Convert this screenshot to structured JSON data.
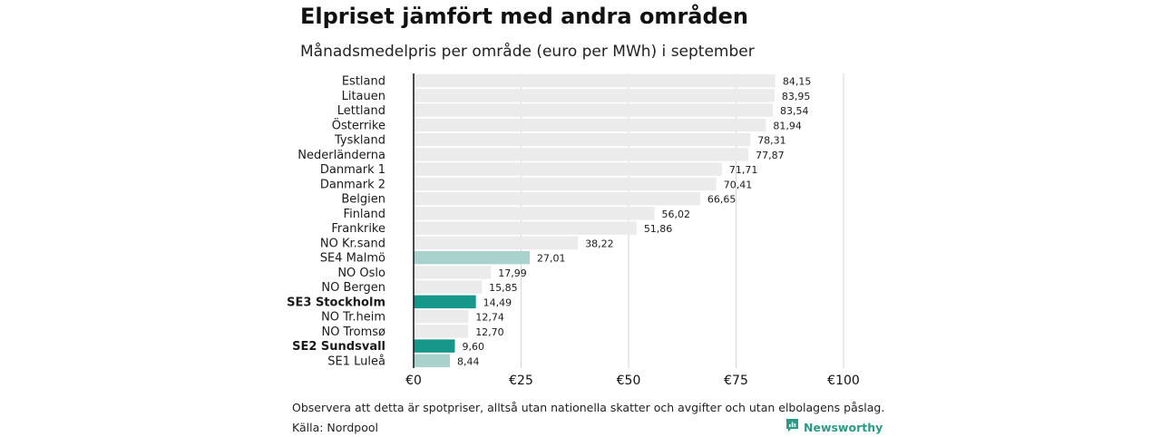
{
  "title": "Elpriset jämfört med andra områden",
  "subtitle": "Månadsmedelpris per område (euro per MWh) i september",
  "note": "Observera att detta är spotpriser, alltså utan nationella skatter och avgifter och utan elbolagens påslag.",
  "source": "Källa: Nordpool",
  "brand": "Newsworthy",
  "colors": {
    "default_bar": "#ebebeb",
    "light_highlight": "#a8d2cb",
    "dark_highlight": "#17978a",
    "gridline": "#d6d6d6",
    "axis": "#111111",
    "brand": "#2a9a86"
  },
  "chart_data": {
    "type": "bar",
    "orientation": "horizontal",
    "xlim": [
      0,
      100
    ],
    "x_ticks": [
      0,
      25,
      50,
      75,
      100
    ],
    "x_tick_labels": [
      "€0",
      "€25",
      "€50",
      "€75",
      "€100"
    ],
    "grid": true,
    "categories": [
      "Estland",
      "Litauen",
      "Lettland",
      "Österrike",
      "Tyskland",
      "Nederländerna",
      "Danmark 1",
      "Danmark 2",
      "Belgien",
      "Finland",
      "Frankrike",
      "NO Kr.sand",
      "SE4 Malmö",
      "NO Oslo",
      "NO Bergen",
      "SE3 Stockholm",
      "NO Tr.heim",
      "NO Tromsø",
      "SE2 Sundsvall",
      "SE1 Luleå"
    ],
    "values": [
      84.15,
      83.95,
      83.54,
      81.94,
      78.31,
      77.87,
      71.71,
      70.41,
      66.65,
      56.02,
      51.86,
      38.22,
      27.01,
      17.99,
      15.85,
      14.49,
      12.74,
      12.7,
      9.6,
      8.44
    ],
    "value_labels": [
      "84,15",
      "83,95",
      "83,54",
      "81,94",
      "78,31",
      "77,87",
      "71,71",
      "70,41",
      "66,65",
      "56,02",
      "51,86",
      "38,22",
      "27,01",
      "17,99",
      "15,85",
      "14,49",
      "12,74",
      "12,70",
      "9,60",
      "8,44"
    ],
    "highlight": [
      "none",
      "none",
      "none",
      "none",
      "none",
      "none",
      "none",
      "none",
      "none",
      "none",
      "none",
      "none",
      "light",
      "none",
      "none",
      "dark",
      "none",
      "none",
      "dark",
      "light"
    ],
    "bold_labels": [
      "SE3 Stockholm",
      "SE2 Sundsvall"
    ]
  }
}
